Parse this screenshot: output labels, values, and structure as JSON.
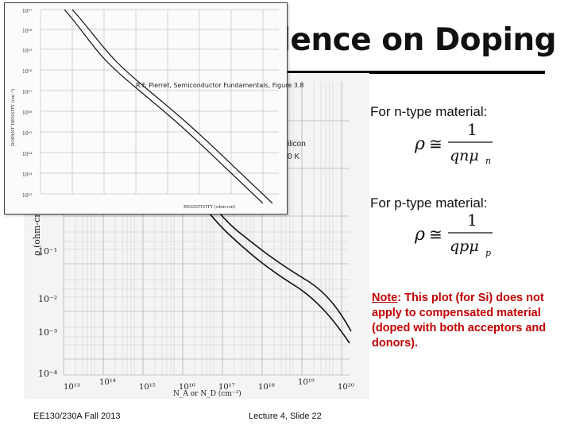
{
  "slide": {
    "title_fragment": "dence on Doping",
    "citation": "R.F. Pierret, Semiconductor Fundamentals, Figure 3.8",
    "silicon_label_1": "ilicon",
    "silicon_label_2": "0 K",
    "n_type_label": "For n-type material:",
    "p_type_label": "For p-type material:",
    "rho_symbol": "ρ",
    "approx_symbol": "≅",
    "numerator": "1",
    "n_denominator": "qnμ",
    "n_subscript": "n",
    "p_denominator": "qpμ",
    "p_subscript": "p",
    "note_label": "Note",
    "note_text": ": This plot (for Si) does not apply to compensated material (doped with both acceptors and donors).",
    "footer_left": "EE130/230A Fall 2013",
    "footer_center": "Lecture 4, Slide 22"
  },
  "main_plot": {
    "y_axis_label": "ρ (ohm-cm)",
    "y_ticks": [
      "10⁻¹",
      "10⁻²",
      "10⁻³",
      "10⁻⁴"
    ],
    "x_ticks": [
      "10¹³",
      "10¹⁴",
      "10¹⁵",
      "10¹⁶",
      "10¹⁷",
      "10¹⁸",
      "10¹⁹",
      "10²⁰"
    ],
    "x_axis_label": "N_A or N_D (cm⁻³)"
  },
  "inset_plot": {
    "y_ticks": [
      "10¹⁷",
      "10¹⁶",
      "10¹⁵",
      "10¹⁸",
      "10¹⁷",
      "10¹⁶",
      "10¹⁵",
      "10¹⁴",
      "10¹³",
      "10¹²"
    ],
    "y_axis_label": "DOPANT DENSITY (cm⁻³)",
    "x_axis_label": "RESISTIVITY (ohm-cm)"
  },
  "colors": {
    "title": "#111111",
    "note": "#c00000",
    "plot_background": "#f4f4f4"
  }
}
